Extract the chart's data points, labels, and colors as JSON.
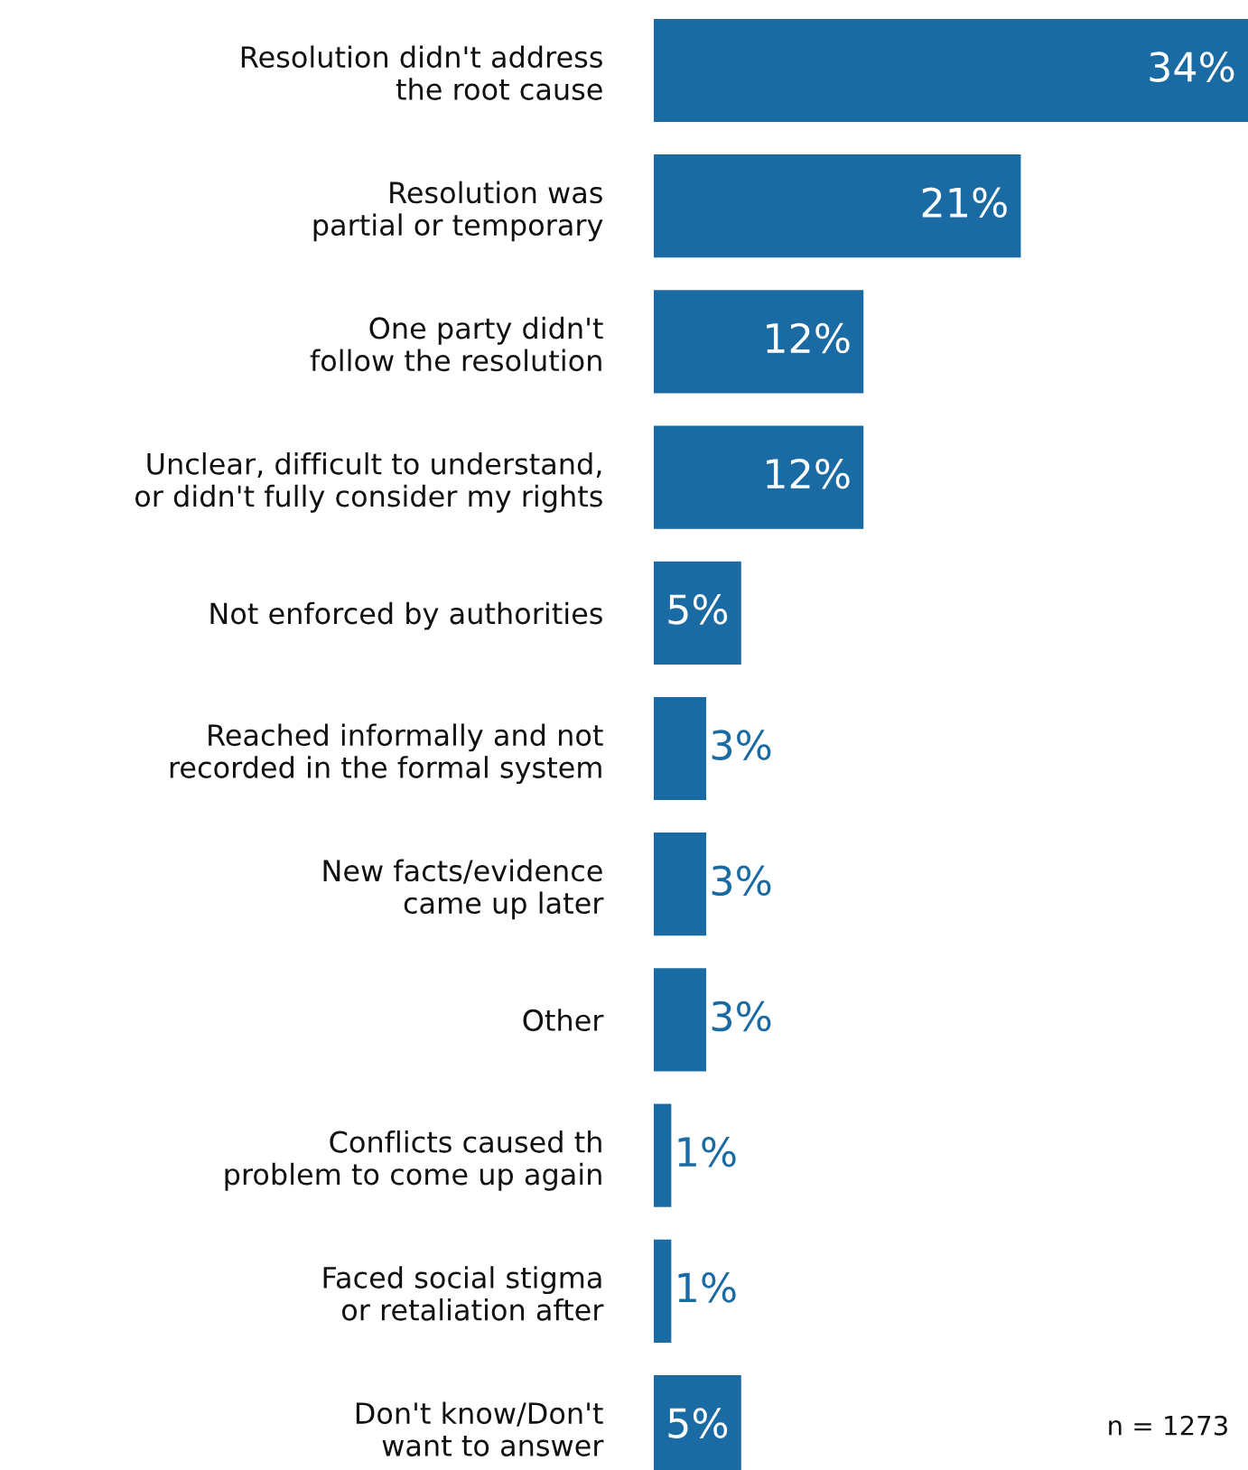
{
  "chart_data": {
    "type": "bar",
    "orientation": "horizontal",
    "categories": [
      "Resolution didn't address\nthe root cause",
      "Resolution was\npartial or temporary",
      "One party didn't\nfollow the resolution",
      "Unclear, difficult to understand,\nor didn't fully consider my rights",
      "Not enforced by authorities",
      "Reached informally and not\nrecorded in the formal system",
      "New facts/evidence\ncame up later",
      "Other",
      "Conflicts caused th\nproblem to come up again",
      "Faced social stigma\nor retaliation after",
      "Don't know/Don't\nwant to answer"
    ],
    "values": [
      34,
      21,
      12,
      12,
      5,
      3,
      3,
      3,
      1,
      1,
      5
    ],
    "value_labels": [
      "34%",
      "21%",
      "12%",
      "12%",
      "5%",
      "3%",
      "3%",
      "3%",
      "1%",
      "1%",
      "5%"
    ],
    "color": "#1a6aa3",
    "annotations": [
      "n = 1273"
    ],
    "grid": false,
    "legend": false
  }
}
